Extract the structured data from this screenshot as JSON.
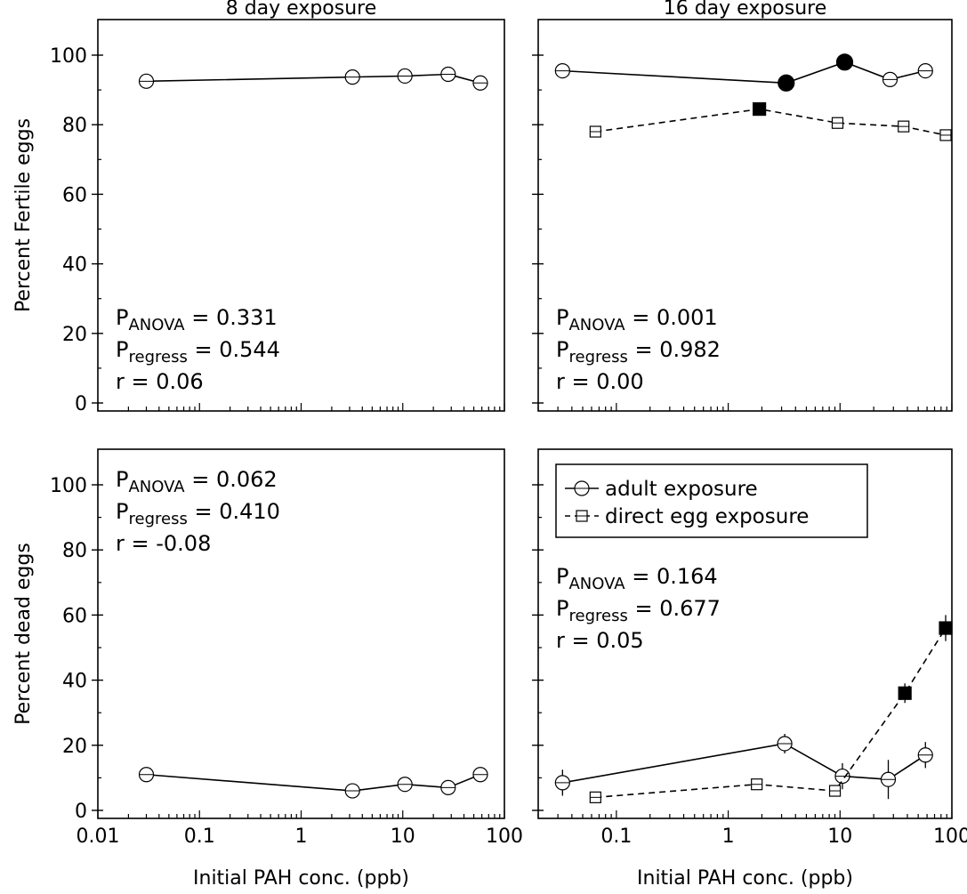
{
  "chart_data": [
    {
      "type": "line",
      "panel": "top-left",
      "title": "8 day exposure",
      "ylabel": "Percent Fertile eggs",
      "xlabel": "",
      "xscale": "log",
      "xlim": [
        0.01,
        100
      ],
      "ylim": [
        0,
        100
      ],
      "yticks": [
        0,
        20,
        40,
        60,
        80,
        100
      ],
      "xtick_labels": [],
      "stats": {
        "anova_value": "0.331",
        "regress_value": "0.544",
        "r_text": "r = 0.06"
      },
      "series": [
        {
          "marker": "open-circle",
          "line": "solid",
          "points": [
            {
              "x": 0.03,
              "y": 92.5,
              "err": 1
            },
            {
              "x": 3.2,
              "y": 93.7,
              "err": 1.5
            },
            {
              "x": 10.5,
              "y": 94.0,
              "err": 1.5
            },
            {
              "x": 28,
              "y": 94.5,
              "err": 1.5
            },
            {
              "x": 58,
              "y": 92.0,
              "err": 1.5
            }
          ]
        }
      ]
    },
    {
      "type": "line",
      "panel": "top-right",
      "title": "16 day exposure",
      "ylabel": "",
      "xlabel": "",
      "xscale": "log",
      "xlim": [
        0.02,
        100
      ],
      "ylim": [
        0,
        100
      ],
      "yticks": [
        0,
        20,
        40,
        60,
        80,
        100
      ],
      "xtick_labels": [],
      "stats": {
        "anova_value": "0.001",
        "regress_value": "0.982",
        "r_text": "r = 0.00"
      },
      "series": [
        {
          "marker": "open-circle",
          "line": "solid",
          "points": [
            {
              "x": 0.033,
              "y": 95.5,
              "err": 1,
              "filled": false
            },
            {
              "x": 3.3,
              "y": 92.0,
              "err": 0,
              "filled": true
            },
            {
              "x": 11,
              "y": 98.0,
              "err": 0,
              "filled": true
            },
            {
              "x": 28,
              "y": 93.0,
              "err": 1.5,
              "filled": false
            },
            {
              "x": 58,
              "y": 95.5,
              "err": 1.5,
              "filled": false
            }
          ]
        },
        {
          "marker": "open-square",
          "line": "dashed",
          "points": [
            {
              "x": 0.065,
              "y": 78.0,
              "err": 1.5,
              "filled": false
            },
            {
              "x": 1.9,
              "y": 84.5,
              "err": 0,
              "filled": true
            },
            {
              "x": 9.5,
              "y": 80.5,
              "err": 1.5,
              "filled": false
            },
            {
              "x": 37,
              "y": 79.5,
              "err": 1.5,
              "filled": false
            },
            {
              "x": 88,
              "y": 77.0,
              "err": 1.5,
              "filled": false
            }
          ]
        }
      ]
    },
    {
      "type": "line",
      "panel": "bottom-left",
      "title": "",
      "ylabel": "Percent dead eggs",
      "xlabel": "Initial PAH conc. (ppb)",
      "xscale": "log",
      "xlim": [
        0.01,
        100
      ],
      "ylim": [
        0,
        100
      ],
      "yticks": [
        0,
        20,
        40,
        60,
        80,
        100
      ],
      "xtick_labels": [
        "0.01",
        "0.1",
        "1",
        "10",
        "100"
      ],
      "stats": {
        "anova_value": "0.062",
        "regress_value": "0.410",
        "r_text": "r = -0.08"
      },
      "series": [
        {
          "marker": "open-circle",
          "line": "solid",
          "points": [
            {
              "x": 0.03,
              "y": 11.0,
              "err": 1.5
            },
            {
              "x": 3.2,
              "y": 6.0,
              "err": 1.5
            },
            {
              "x": 10.5,
              "y": 8.0,
              "err": 2
            },
            {
              "x": 28,
              "y": 7.0,
              "err": 2
            },
            {
              "x": 58,
              "y": 11.0,
              "err": 2
            }
          ]
        }
      ]
    },
    {
      "type": "line",
      "panel": "bottom-right",
      "title": "",
      "ylabel": "",
      "xlabel": "Initial PAH conc. (ppb)",
      "xscale": "log",
      "xlim": [
        0.02,
        100
      ],
      "ylim": [
        0,
        100
      ],
      "yticks": [
        0,
        20,
        40,
        60,
        80,
        100
      ],
      "xtick_labels": [
        "0.1",
        "1",
        "10",
        "100"
      ],
      "stats": {
        "anova_value": "0.164",
        "regress_value": "0.677",
        "r_text": "r = 0.05"
      },
      "legend": {
        "placement": "top",
        "entries": [
          "adult exposure",
          "direct egg exposure"
        ]
      },
      "series": [
        {
          "name": "adult exposure",
          "marker": "open-circle",
          "line": "solid",
          "points": [
            {
              "x": 0.033,
              "y": 8.5,
              "err": 4,
              "filled": false
            },
            {
              "x": 3.2,
              "y": 20.5,
              "err": 3,
              "filled": false
            },
            {
              "x": 10.5,
              "y": 10.5,
              "err": 4,
              "filled": false
            },
            {
              "x": 27,
              "y": 9.5,
              "err": 6,
              "filled": false
            },
            {
              "x": 58,
              "y": 17.0,
              "err": 4,
              "filled": false
            }
          ]
        },
        {
          "name": "direct egg exposure",
          "marker": "open-square",
          "line": "dashed",
          "points": [
            {
              "x": 0.065,
              "y": 4.0,
              "err": 1,
              "filled": false
            },
            {
              "x": 1.8,
              "y": 8.0,
              "err": 1.5,
              "filled": false
            },
            {
              "x": 9.0,
              "y": 6.0,
              "err": 1.5,
              "filled": false
            },
            {
              "x": 38,
              "y": 36.0,
              "err": 3,
              "filled": true
            },
            {
              "x": 88,
              "y": 56.0,
              "err": 4,
              "filled": true
            }
          ]
        }
      ]
    }
  ],
  "stat_labels": {
    "anova_main": "P",
    "anova_sub": "ANOVA",
    "regress_main": "P",
    "regress_sub": "regress",
    "eq": "="
  }
}
